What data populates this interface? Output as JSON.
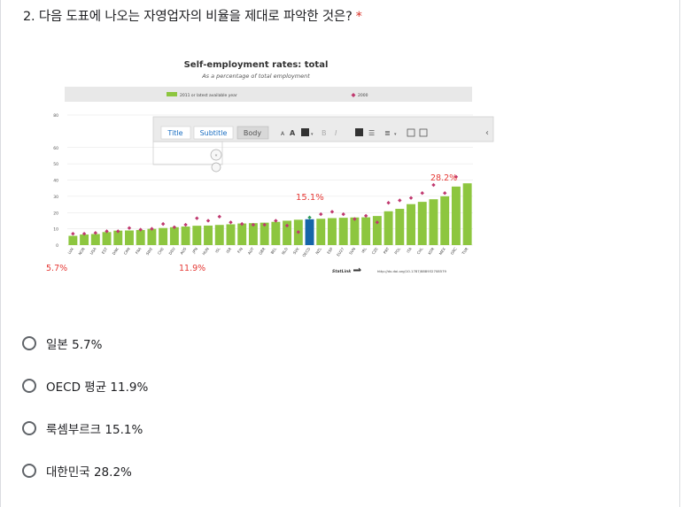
{
  "question": {
    "text": "2. 다음 도표에 나오는 자영업자의 비율을 제대로 파악한 것은?",
    "required_mark": "*"
  },
  "chart_data": {
    "type": "bar",
    "title": "Self-employment rates: total",
    "subtitle": "As a percentage of total employment",
    "legend": {
      "bar": "2011 or latest available year",
      "marker": "2000",
      "placement": "top"
    },
    "ylim": [
      0,
      80
    ],
    "yticks": [
      0,
      10,
      20,
      30,
      40,
      50,
      60,
      80
    ],
    "grid": true,
    "categories": [
      "LUX",
      "NOR",
      "USA",
      "EST",
      "DNK",
      "CAN",
      "FRA",
      "SWE",
      "CHE",
      "DEU",
      "AUS",
      "JPN",
      "HUN",
      "ISL",
      "ISR",
      "FIN",
      "AUT",
      "GBR",
      "BEL",
      "NLD",
      "SVK",
      "OECD",
      "NZL",
      "ESP",
      "EU27",
      "SVN",
      "IRL",
      "CZE",
      "PRT",
      "POL",
      "ITA",
      "CHL",
      "KOR",
      "MEX",
      "GRC",
      "TUR"
    ],
    "series": [
      {
        "name": "2011 or latest available year",
        "values": [
          5.7,
          6.5,
          6.8,
          8,
          8.9,
          9,
          9.3,
          10,
          10.5,
          11,
          11.4,
          11.9,
          12,
          12.4,
          12.8,
          13.3,
          13.5,
          13.8,
          14.3,
          15,
          15.6,
          15.9,
          16.2,
          16.6,
          16.8,
          17,
          17.1,
          17.9,
          20.8,
          22.3,
          25.2,
          26.6,
          28.2,
          30,
          36,
          38
        ]
      },
      {
        "name": "2000",
        "values": [
          7,
          7,
          7.5,
          8.5,
          8.5,
          10.5,
          9.5,
          10,
          13,
          11,
          12.5,
          16.5,
          15,
          17.5,
          14,
          13,
          12.5,
          12.5,
          15,
          12,
          8,
          17,
          19,
          20.5,
          19,
          16,
          18,
          14,
          26,
          27.5,
          29,
          32,
          37,
          32,
          42,
          null
        ]
      }
    ],
    "annotations": [
      "5.7%",
      "11.9%",
      "15.1%",
      "28.2%"
    ],
    "source": "http://dx.doi.org/10.1787/888932708579",
    "colors": {
      "bar": "#8dc63f",
      "highlight": "#1565a8",
      "marker": "#c0396f",
      "annotation": "#e53935"
    }
  },
  "toolbar": {
    "title": "Title",
    "subtitle": "Subtitle",
    "body": "Body",
    "size_a": "A",
    "size_b": "A",
    "bold": "B",
    "italic": "I",
    "expand": "‹",
    "collapse": "«"
  },
  "statlink": "StatLink",
  "options": [
    {
      "label": "일본 5.7%"
    },
    {
      "label": "OECD 평균 11.9%"
    },
    {
      "label": "룩셈부르크 15.1%"
    },
    {
      "label": "대한민국 28.2%"
    }
  ]
}
